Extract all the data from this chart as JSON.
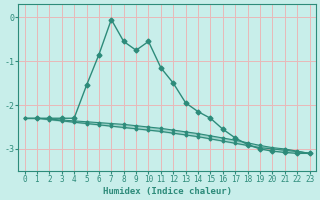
{
  "xlabel": "Humidex (Indice chaleur)",
  "bg_color": "#c8eeea",
  "line_color": "#2d8b7a",
  "grid_color": "#e8b8b8",
  "xlim": [
    -0.5,
    23.5
  ],
  "ylim": [
    -3.5,
    0.3
  ],
  "yticks": [
    0,
    -1,
    -2,
    -3
  ],
  "xticks": [
    0,
    1,
    2,
    3,
    4,
    5,
    6,
    7,
    8,
    9,
    10,
    11,
    12,
    13,
    14,
    15,
    16,
    17,
    18,
    19,
    20,
    21,
    22,
    23
  ],
  "curve_x": [
    1,
    2,
    3,
    4,
    5,
    6,
    7,
    8,
    9,
    10,
    11,
    12,
    13,
    14,
    15,
    16,
    17,
    18,
    19,
    20,
    21,
    22,
    23
  ],
  "curve_y": [
    -2.3,
    -2.3,
    -2.3,
    -2.3,
    -1.55,
    -0.85,
    -0.05,
    -0.55,
    -0.75,
    -0.55,
    -1.15,
    -1.5,
    -1.95,
    -2.15,
    -2.3,
    -2.55,
    -2.75,
    -2.9,
    -3.0,
    -3.05,
    -3.08,
    -3.1,
    -3.1
  ],
  "line1_x": [
    0,
    1,
    2,
    3,
    4,
    5,
    6,
    7,
    8,
    9,
    10,
    11,
    12,
    13,
    14,
    15,
    16,
    17,
    18,
    19,
    20,
    21,
    22,
    23
  ],
  "line1_y": [
    -2.3,
    -2.3,
    -2.32,
    -2.34,
    -2.36,
    -2.38,
    -2.4,
    -2.42,
    -2.44,
    -2.47,
    -2.5,
    -2.53,
    -2.57,
    -2.61,
    -2.65,
    -2.7,
    -2.75,
    -2.8,
    -2.86,
    -2.92,
    -2.97,
    -3.0,
    -3.05,
    -3.1
  ],
  "line2_x": [
    0,
    1,
    2,
    3,
    4,
    5,
    6,
    7,
    8,
    9,
    10,
    11,
    12,
    13,
    14,
    15,
    16,
    17,
    18,
    19,
    20,
    21,
    22,
    23
  ],
  "line2_y": [
    -2.3,
    -2.3,
    -2.33,
    -2.36,
    -2.39,
    -2.42,
    -2.45,
    -2.48,
    -2.51,
    -2.54,
    -2.57,
    -2.6,
    -2.64,
    -2.68,
    -2.72,
    -2.77,
    -2.82,
    -2.87,
    -2.92,
    -2.97,
    -3.0,
    -3.03,
    -3.06,
    -3.1
  ]
}
